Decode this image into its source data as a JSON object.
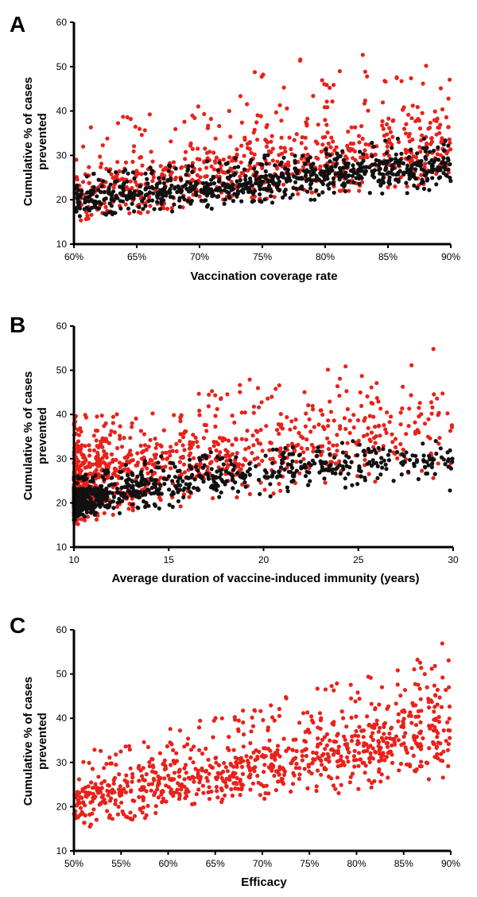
{
  "chart_data": [
    {
      "panel": "A",
      "type": "scatter",
      "xlabel": "Vaccination coverage rate",
      "ylabel_line1": "Cumulative % of  cases",
      "ylabel_line2": "prevented",
      "xlim": [
        0.6,
        0.9
      ],
      "ylim": [
        10,
        60
      ],
      "xticks": [
        0.6,
        0.65,
        0.7,
        0.75,
        0.8,
        0.85,
        0.9
      ],
      "xtick_labels": [
        "60%",
        "65%",
        "70%",
        "75%",
        "80%",
        "85%",
        "90%"
      ],
      "yticks": [
        10,
        20,
        30,
        40,
        50,
        60
      ],
      "ytick_labels": [
        "10",
        "20",
        "30",
        "40",
        "50",
        "60"
      ],
      "series": [
        {
          "color": "#e8221b",
          "x": [
            0.6,
            0.615,
            0.63,
            0.645,
            0.66,
            0.675,
            0.69,
            0.705,
            0.72,
            0.735,
            0.75,
            0.765,
            0.78,
            0.795,
            0.81,
            0.825,
            0.84,
            0.855,
            0.87,
            0.885,
            0.9
          ],
          "y": [
            21,
            22,
            22,
            23,
            23,
            24,
            24,
            25,
            25,
            26,
            27,
            27,
            28,
            28,
            29,
            29,
            30,
            31,
            31,
            32,
            32
          ],
          "y_spread": [
            [
              15,
              33
            ],
            [
              16,
              37
            ],
            [
              16,
              38
            ],
            [
              17,
              40
            ],
            [
              17,
              45
            ],
            [
              18,
              38
            ],
            [
              18,
              44
            ],
            [
              19,
              47
            ],
            [
              19,
              42
            ],
            [
              20,
              47
            ],
            [
              20,
              51
            ],
            [
              21,
              47
            ],
            [
              21,
              52
            ],
            [
              22,
              49
            ],
            [
              22,
              49
            ],
            [
              22,
              53
            ],
            [
              22,
              52
            ],
            [
              23,
              49
            ],
            [
              23,
              52
            ],
            [
              24,
              58
            ],
            [
              24,
              50
            ]
          ],
          "n_points": 700
        },
        {
          "color": "#111111",
          "x": [
            0.6,
            0.615,
            0.63,
            0.645,
            0.66,
            0.675,
            0.69,
            0.705,
            0.72,
            0.735,
            0.75,
            0.765,
            0.78,
            0.795,
            0.81,
            0.825,
            0.84,
            0.855,
            0.87,
            0.885,
            0.9
          ],
          "y": [
            19,
            20,
            20.5,
            21,
            21.5,
            22,
            22,
            22.5,
            23,
            23.5,
            24,
            24.5,
            25,
            25,
            25.5,
            26,
            26.5,
            27,
            27,
            27.5,
            28
          ],
          "y_spread": [
            [
              15,
              25
            ],
            [
              16,
              26
            ],
            [
              16,
              27
            ],
            [
              17,
              27
            ],
            [
              17,
              28
            ],
            [
              17,
              28
            ],
            [
              18,
              28
            ],
            [
              18,
              29
            ],
            [
              18,
              29
            ],
            [
              19,
              30
            ],
            [
              19,
              30
            ],
            [
              19,
              31
            ],
            [
              20,
              31
            ],
            [
              20,
              32
            ],
            [
              20,
              32
            ],
            [
              21,
              33
            ],
            [
              21,
              33
            ],
            [
              21,
              34
            ],
            [
              21,
              34
            ],
            [
              22,
              34
            ],
            [
              22,
              34
            ]
          ],
          "n_points": 800
        }
      ]
    },
    {
      "panel": "B",
      "type": "scatter",
      "xlabel": "Average duration of vaccine-induced immunity (years)",
      "ylabel_line1": "Cumulative % of  cases",
      "ylabel_line2": "prevented",
      "xlim": [
        10,
        30
      ],
      "ylim": [
        10,
        60
      ],
      "xticks": [
        10,
        15,
        20,
        25,
        30
      ],
      "xtick_labels": [
        "10",
        "15",
        "20",
        "25",
        "30"
      ],
      "yticks": [
        10,
        20,
        30,
        40,
        50,
        60
      ],
      "ytick_labels": [
        "10",
        "20",
        "30",
        "40",
        "50",
        "60"
      ],
      "series": [
        {
          "color": "#e8221b",
          "x": [
            10,
            11,
            12,
            13,
            14,
            15,
            16,
            17,
            18,
            19,
            20,
            21,
            22,
            23,
            24,
            25,
            26,
            27,
            28,
            29,
            30
          ],
          "y": [
            25,
            26,
            26.5,
            27,
            28,
            29,
            30,
            31,
            31.5,
            32,
            33,
            33.5,
            34,
            34.5,
            35,
            36,
            36.5,
            37,
            37,
            38,
            38
          ],
          "y_spread": [
            [
              15,
              40
            ],
            [
              16,
              40
            ],
            [
              17,
              41
            ],
            [
              18,
              42
            ],
            [
              18,
              42
            ],
            [
              19,
              44
            ],
            [
              19,
              45
            ],
            [
              20,
              45
            ],
            [
              20,
              46
            ],
            [
              21,
              49
            ],
            [
              21,
              50
            ],
            [
              21,
              49
            ],
            [
              22,
              47
            ],
            [
              22,
              49
            ],
            [
              23,
              52
            ],
            [
              23,
              54
            ],
            [
              23,
              54
            ],
            [
              23,
              54
            ],
            [
              24,
              51
            ],
            [
              24,
              57
            ],
            [
              24,
              58
            ]
          ],
          "n_points": 900,
          "density_bias": 2.2
        },
        {
          "color": "#111111",
          "x": [
            10,
            11,
            12,
            13,
            14,
            15,
            16,
            17,
            18,
            19,
            20,
            21,
            22,
            23,
            24,
            25,
            26,
            27,
            28,
            29,
            30
          ],
          "y": [
            20,
            21,
            22,
            23,
            23.5,
            24,
            25,
            25.5,
            26,
            26.5,
            27,
            27.5,
            28,
            28.5,
            28.5,
            29,
            29,
            29.5,
            29.5,
            30,
            30
          ],
          "y_spread": [
            [
              16,
              26
            ],
            [
              17,
              27
            ],
            [
              17,
              28
            ],
            [
              18,
              29
            ],
            [
              18,
              30
            ],
            [
              19,
              31
            ],
            [
              19,
              31
            ],
            [
              20,
              32
            ],
            [
              20,
              32
            ],
            [
              21,
              32
            ],
            [
              21,
              33
            ],
            [
              22,
              33
            ],
            [
              22,
              33
            ],
            [
              23,
              34
            ],
            [
              23,
              34
            ],
            [
              23,
              34
            ],
            [
              23,
              34
            ],
            [
              24,
              34
            ],
            [
              24,
              34
            ],
            [
              24,
              34
            ],
            [
              22,
              34
            ]
          ],
          "n_points": 750,
          "density_bias": 2.4
        }
      ]
    },
    {
      "panel": "C",
      "type": "scatter",
      "xlabel": "Efficacy",
      "ylabel_line1": "Cumulative % of  cases",
      "ylabel_line2": "prevented",
      "xlim": [
        0.5,
        0.9
      ],
      "ylim": [
        10,
        60
      ],
      "xticks": [
        0.5,
        0.55,
        0.6,
        0.65,
        0.7,
        0.75,
        0.8,
        0.85,
        0.9
      ],
      "xtick_labels": [
        "50%",
        "55%",
        "60%",
        "65%",
        "70%",
        "75%",
        "80%",
        "85%",
        "90%"
      ],
      "yticks": [
        10,
        20,
        30,
        40,
        50,
        60
      ],
      "ytick_labels": [
        "10",
        "20",
        "30",
        "40",
        "50",
        "60"
      ],
      "series": [
        {
          "color": "#e8221b",
          "x": [
            0.5,
            0.52,
            0.54,
            0.56,
            0.58,
            0.6,
            0.62,
            0.64,
            0.66,
            0.68,
            0.7,
            0.72,
            0.74,
            0.76,
            0.78,
            0.8,
            0.82,
            0.84,
            0.86,
            0.88,
            0.9
          ],
          "y": [
            21,
            22,
            23,
            23.5,
            24,
            25,
            26,
            27,
            27.5,
            28,
            29,
            30,
            31,
            31.5,
            32,
            33,
            34,
            35,
            36,
            37,
            38
          ],
          "y_spread": [
            [
              15,
              30
            ],
            [
              15,
              33
            ],
            [
              16,
              33
            ],
            [
              17,
              35
            ],
            [
              17,
              37
            ],
            [
              18,
              38
            ],
            [
              19,
              39
            ],
            [
              20,
              40
            ],
            [
              20,
              41
            ],
            [
              21,
              42
            ],
            [
              21,
              43
            ],
            [
              22,
              45
            ],
            [
              22,
              45
            ],
            [
              23,
              47
            ],
            [
              23,
              49
            ],
            [
              24,
              49
            ],
            [
              24,
              50
            ],
            [
              25,
              52
            ],
            [
              26,
              54
            ],
            [
              26,
              58
            ],
            [
              27,
              57
            ]
          ],
          "n_points": 900
        }
      ]
    }
  ]
}
